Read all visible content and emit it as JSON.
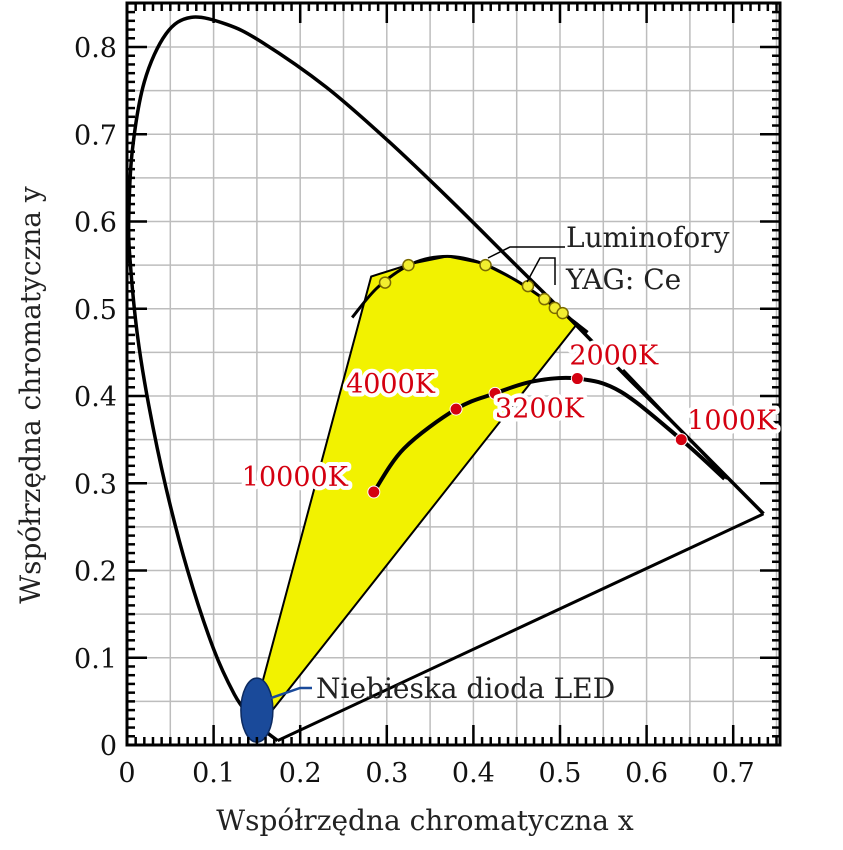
{
  "chart_data": {
    "type": "line",
    "title": "",
    "xlabel": "Współrzędna chromatyczna x",
    "ylabel": "Współrzędna chromatyczna y",
    "xlim": [
      0,
      0.755
    ],
    "ylim": [
      0,
      0.855
    ],
    "grid": true,
    "grid_step": 0.05,
    "x_ticks": [
      "0",
      "0.1",
      "0.2",
      "0.3",
      "0.4",
      "0.5",
      "0.6",
      "0.7"
    ],
    "y_ticks": [
      "0",
      "0.1",
      "0.2",
      "0.3",
      "0.4",
      "0.5",
      "0.6",
      "0.7",
      "0.8"
    ],
    "spectral_locus": [
      [
        0.174,
        0.005
      ],
      [
        0.157,
        0.018
      ],
      [
        0.141,
        0.034
      ],
      [
        0.124,
        0.058
      ],
      [
        0.1,
        0.11
      ],
      [
        0.07,
        0.2
      ],
      [
        0.045,
        0.295
      ],
      [
        0.025,
        0.39
      ],
      [
        0.012,
        0.47
      ],
      [
        0.004,
        0.55
      ],
      [
        0.002,
        0.6
      ],
      [
        0.006,
        0.68
      ],
      [
        0.02,
        0.76
      ],
      [
        0.045,
        0.815
      ],
      [
        0.074,
        0.834
      ],
      [
        0.115,
        0.826
      ],
      [
        0.155,
        0.806
      ],
      [
        0.23,
        0.754
      ],
      [
        0.302,
        0.692
      ],
      [
        0.373,
        0.625
      ],
      [
        0.444,
        0.555
      ],
      [
        0.513,
        0.487
      ],
      [
        0.575,
        0.424
      ],
      [
        0.627,
        0.373
      ],
      [
        0.692,
        0.308
      ],
      [
        0.735,
        0.265
      ]
    ],
    "purple_line": [
      [
        0.735,
        0.265
      ],
      [
        0.174,
        0.005
      ]
    ],
    "phosphor_arc": [
      [
        0.26,
        0.49
      ],
      [
        0.29,
        0.525
      ],
      [
        0.33,
        0.552
      ],
      [
        0.37,
        0.56
      ],
      [
        0.41,
        0.552
      ],
      [
        0.45,
        0.532
      ],
      [
        0.49,
        0.505
      ],
      [
        0.532,
        0.473
      ]
    ],
    "phosphor_points": [
      [
        0.298,
        0.53
      ],
      [
        0.325,
        0.55
      ],
      [
        0.414,
        0.55
      ],
      [
        0.463,
        0.526
      ],
      [
        0.482,
        0.511
      ],
      [
        0.494,
        0.501
      ],
      [
        0.503,
        0.495
      ]
    ],
    "phosphor_label": [
      "Luminofory",
      "YAG: Ce"
    ],
    "yellow_region": [
      [
        0.145,
        0.03
      ],
      [
        0.282,
        0.537
      ],
      [
        0.33,
        0.552
      ],
      [
        0.37,
        0.56
      ],
      [
        0.41,
        0.552
      ],
      [
        0.45,
        0.532
      ],
      [
        0.49,
        0.505
      ],
      [
        0.52,
        0.483
      ],
      [
        0.16,
        0.03
      ]
    ],
    "planckian_locus": [
      [
        0.285,
        0.29
      ],
      [
        0.32,
        0.34
      ],
      [
        0.38,
        0.385
      ],
      [
        0.425,
        0.403
      ],
      [
        0.47,
        0.417
      ],
      [
        0.52,
        0.42
      ],
      [
        0.57,
        0.405
      ],
      [
        0.64,
        0.35
      ],
      [
        0.69,
        0.305
      ]
    ],
    "extra_line": [
      [
        0.573,
        0.43
      ],
      [
        0.693,
        0.305
      ]
    ],
    "temperature_points": [
      {
        "label": "10000K",
        "x": 0.285,
        "y": 0.29
      },
      {
        "label": "4000K",
        "x": 0.38,
        "y": 0.385
      },
      {
        "label": "3200K",
        "x": 0.425,
        "y": 0.403
      },
      {
        "label": "2000K",
        "x": 0.52,
        "y": 0.42
      },
      {
        "label": "1000K",
        "x": 0.64,
        "y": 0.35
      }
    ],
    "led": {
      "label": "Niebieska dioda LED",
      "x": 0.15,
      "y": 0.04
    },
    "colors": {
      "locus": "#000000",
      "region": "#f2f200",
      "points_temp": "#d40010",
      "led": "#1a4a9a",
      "phosphor": "#f2ee30",
      "grid": "#bdbdbd"
    }
  }
}
